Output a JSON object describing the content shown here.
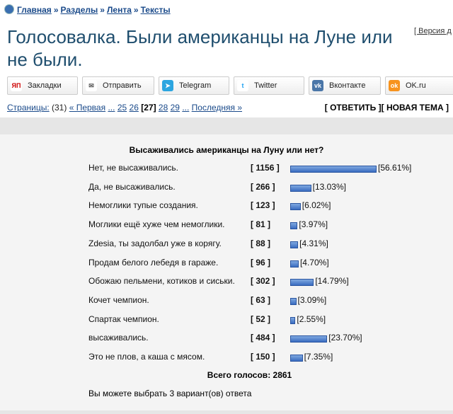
{
  "breadcrumb": {
    "items": [
      "Главная",
      "Разделы",
      "Лента",
      "Тексты"
    ],
    "separator": "»"
  },
  "header": {
    "title": "Голосовалка. Были американцы на Луне или не были.",
    "version": "[ Версия д"
  },
  "share": {
    "buttons": [
      {
        "icon": "ЯП",
        "label": "Закладки"
      },
      {
        "icon": "✉",
        "label": "Отправить"
      },
      {
        "icon": "➤",
        "label": "Telegram"
      },
      {
        "icon": "t",
        "label": "Twitter"
      },
      {
        "icon": "vk",
        "label": "Вконтакте"
      },
      {
        "icon": "ok",
        "label": "OK.ru"
      }
    ]
  },
  "pages": {
    "label": "Страницы:",
    "count": "(31)",
    "links": [
      "« Первая",
      "...",
      "25",
      "26",
      "[27]",
      "28",
      "29",
      "...",
      "Последняя »"
    ],
    "current": 4
  },
  "actions": [
    "[ ОТВЕТИТЬ ]",
    "[ НОВАЯ ТЕМА ]"
  ],
  "poll": {
    "question": "Высаживались американцы на Луну или нет?",
    "options": [
      "Нет, не высаживались.",
      "Да, не высаживались.",
      "Немоглики тупые создания.",
      "Моглики ещё хуже чем немоглики.",
      "Zdesia, ты задолбал уже в корягу.",
      "Продам белого лебедя в гараже.",
      "Обожаю пельмени, котиков и сиськи.",
      "Кочет чемпион.",
      "Спартак чемпион.",
      "высаживались.",
      "Это не плов, а каша с мясом."
    ],
    "vote_labels": [
      "[ 1156 ]",
      "[ 266 ]",
      "[ 123 ]",
      "[ 81 ]",
      "[ 88 ]",
      "[ 96 ]",
      "[ 302 ]",
      "[ 63 ]",
      "[ 52 ]",
      "[ 484 ]",
      "[ 150 ]"
    ],
    "percents": [
      56.61,
      13.03,
      6.02,
      3.97,
      4.31,
      4.7,
      14.79,
      3.09,
      2.55,
      23.7,
      7.35
    ],
    "percent_labels": [
      "[56.61%]",
      "[13.03%]",
      "[6.02%]",
      "[3.97%]",
      "[4.31%]",
      "[4.70%]",
      "[14.79%]",
      "[3.09%]",
      "[2.55%]",
      "[23.70%]",
      "[7.35%]"
    ],
    "total": "Всего голосов: 2861",
    "note": "Вы можете выбрать 3 вариант(ов) ответа"
  }
}
